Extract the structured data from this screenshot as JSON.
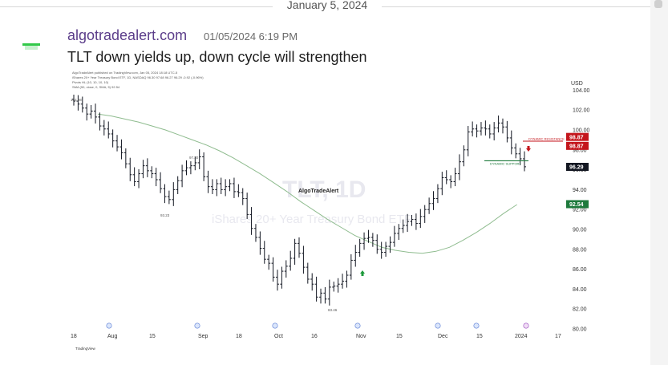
{
  "divider": {
    "date": "January 5, 2024"
  },
  "message": {
    "author": "algotradealert.com",
    "timestamp": "01/05/2024 6:19 PM",
    "text": "TLT down yields up, down cycle will strengthen"
  },
  "chart_header": {
    "line1": "AlgoTradeAlert published on TradingView.com, Jan 05, 2024 18:18 UTC-5",
    "line2": "iShares 20+ Year Treasury Bond ETF, 1D, NASDAQ 96.30 97.68 96.27 96.29 -0.92 (-0.96%)",
    "line3": "Pivots HL (10, 10, 10, 10)",
    "line4": "SMA (50, close, 0, SMA, 5) 92.54",
    "currency": "USD"
  },
  "chart_data": {
    "type": "candlestick",
    "title": "TLT, 1D",
    "subtitle": "iShares 20+ Year Treasury Bond ETF",
    "watermark": "AlgoTradeAlert",
    "yticks": [
      "104.00",
      "102.00",
      "100.00",
      "98.00",
      "96.00",
      "94.00",
      "92.00",
      "90.00",
      "88.00",
      "86.00",
      "84.00",
      "82.00",
      "80.00"
    ],
    "xticks": [
      "18",
      "Aug",
      "15",
      "Sep",
      "18",
      "Oct",
      "16",
      "Nov",
      "15",
      "Dec",
      "15",
      "2024",
      "17"
    ],
    "ylim": [
      80,
      105
    ],
    "closes": [
      102.9,
      102.6,
      102.2,
      101.6,
      101.9,
      101.3,
      100.4,
      100.1,
      99.6,
      98.9,
      98.3,
      97.7,
      96.6,
      95.5,
      94.8,
      95.6,
      96.4,
      95.9,
      95.6,
      95.0,
      94.1,
      93.3,
      93.0,
      94.0,
      94.9,
      95.9,
      96.2,
      96.4,
      96.7,
      97.3,
      95.3,
      94.3,
      94.0,
      94.6,
      94.0,
      94.3,
      94.6,
      93.8,
      93.7,
      93.1,
      91.5,
      90.1,
      89.2,
      88.1,
      87.0,
      86.6,
      85.2,
      84.5,
      85.8,
      86.3,
      87.1,
      88.6,
      87.6,
      86.2,
      85.0,
      84.5,
      83.2,
      83.6,
      83.0,
      84.2,
      84.3,
      84.5,
      84.8,
      85.4,
      86.9,
      87.7,
      88.6,
      89.1,
      89.2,
      88.9,
      88.0,
      87.7,
      88.3,
      88.7,
      89.6,
      90.1,
      90.4,
      90.8,
      91.0,
      90.6,
      91.3,
      92.0,
      92.6,
      93.1,
      94.1,
      95.2,
      95.0,
      94.8,
      95.6,
      96.8,
      98.0,
      99.8,
      100.1,
      99.9,
      100.2,
      100.1,
      99.6,
      100.2,
      100.7,
      100.3,
      99.2,
      98.2,
      97.6,
      97.1,
      96.3
    ],
    "series": [
      {
        "name": "Price",
        "color": "#131722"
      },
      {
        "name": "SMA",
        "color": "#8fbc8f",
        "values": [
          101.6,
          101.4,
          101.1,
          100.8,
          100.4,
          100.0,
          99.5,
          99.0,
          98.5,
          97.9,
          97.2,
          96.4,
          95.6,
          94.7,
          93.8,
          92.8,
          91.9,
          91.0,
          90.2,
          89.4,
          88.8,
          88.2,
          87.9,
          87.7,
          87.6,
          87.8,
          88.2,
          88.9,
          89.7,
          90.6,
          91.6,
          92.5
        ]
      }
    ],
    "annotations": {
      "high_label": "102.98",
      "high_label2": "97.30",
      "low_label1": "93.23",
      "low_label2": "83.46",
      "resistance_label": "DYNAMIC RESISTANCE",
      "support_label": "DYNAMIC SUPPORT",
      "resistance_value": 98.87,
      "support_value": 96.9
    },
    "price_tags": [
      {
        "value": "98.87",
        "color": "#c4161c",
        "text_color": "#ffffff"
      },
      {
        "value": "98.87",
        "color": "#c4161c",
        "text_color": "#ffffff"
      },
      {
        "value": "96.29",
        "color": "#131722",
        "text_color": "#ffffff"
      },
      {
        "value": "92.54",
        "color": "#1e7a3c",
        "text_color": "#ffffff"
      }
    ],
    "footer": "TradingView"
  }
}
